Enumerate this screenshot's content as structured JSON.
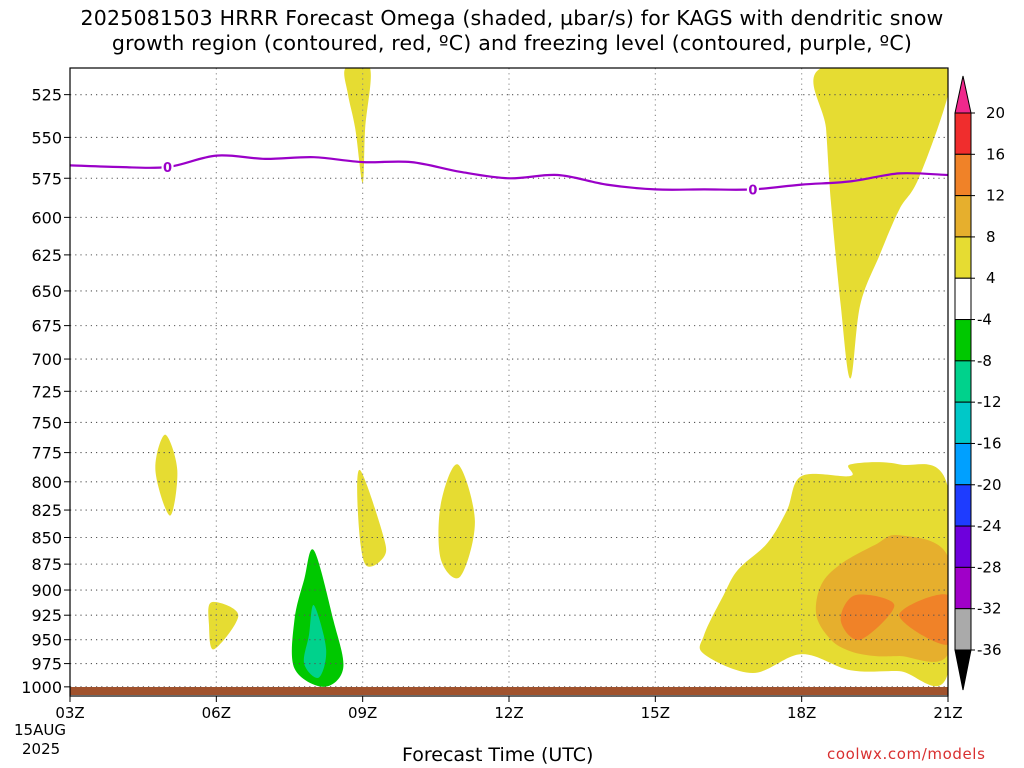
{
  "title_line1": "2025081503 HRRR Forecast Omega (shaded, µbar/s) for KAGS with dendritic snow",
  "title_line2": "growth region (contoured, red, ºC) and freezing level (contoured, purple, ºC)",
  "xaxis_title": "Forecast Time (UTC)",
  "credit": "coolwx.com/models",
  "date_label": {
    "day": "15AUG",
    "year": "2025"
  },
  "colors": {
    "freezing_level": "#9a00c8",
    "terrain": "#a0522d",
    "omega_4_8": "#e6dc32",
    "omega_8_12": "#e6af2d",
    "omega_12_16": "#f08228",
    "omega_neg4_neg8": "#00c800",
    "omega_neg8_neg12": "#00d28c"
  },
  "chart_data": {
    "type": "heatmap",
    "x_categories": [
      "03Z",
      "06Z",
      "09Z",
      "12Z",
      "15Z",
      "18Z",
      "21Z"
    ],
    "x_hours": [
      3,
      6,
      9,
      12,
      15,
      18,
      21
    ],
    "xlim": [
      3,
      21
    ],
    "ylabel_levels": [
      525,
      550,
      575,
      600,
      625,
      650,
      675,
      700,
      725,
      750,
      775,
      800,
      825,
      850,
      875,
      900,
      925,
      950,
      975,
      1000
    ],
    "ylim": [
      510,
      1010
    ],
    "y_scale": "log",
    "grid": true,
    "colorbar": {
      "labels": [
        "20",
        "16",
        "12",
        "8",
        "4",
        "-4",
        "-8",
        "-12",
        "-16",
        "-20",
        "-24",
        "-28",
        "-32",
        "-36"
      ],
      "colors": [
        "#f0288c",
        "#f02d2d",
        "#f08228",
        "#e6af2d",
        "#e6dc32",
        "#ffffff",
        "#00c800",
        "#00d28c",
        "#00c8c8",
        "#00a0ff",
        "#1e3cff",
        "#6e00dc",
        "#a000c8",
        "#aaaaaa"
      ]
    },
    "freezing_level": {
      "label": "0",
      "points": [
        [
          3,
          567
        ],
        [
          4,
          568
        ],
        [
          5,
          568
        ],
        [
          6,
          561
        ],
        [
          7,
          563
        ],
        [
          8,
          562
        ],
        [
          9,
          565
        ],
        [
          10,
          565
        ],
        [
          11,
          571
        ],
        [
          12,
          575
        ],
        [
          13,
          573
        ],
        [
          14,
          579
        ],
        [
          15,
          582
        ],
        [
          16,
          582
        ],
        [
          17,
          582
        ],
        [
          18,
          579
        ],
        [
          19,
          577
        ],
        [
          20,
          572
        ],
        [
          21,
          573
        ]
      ],
      "label_hours": [
        5,
        17
      ]
    },
    "omega_regions": [
      {
        "name": "omega-4-8-top-spike",
        "band": "omega_4_8",
        "points": [
          [
            8.65,
            510
          ],
          [
            9.15,
            510
          ],
          [
            9.05,
            545
          ],
          [
            9.0,
            578
          ],
          [
            8.85,
            545
          ],
          [
            8.7,
            525
          ]
        ]
      },
      {
        "name": "omega-4-8-upper-right",
        "band": "omega_4_8",
        "points": [
          [
            18.4,
            510
          ],
          [
            20.9,
            510
          ],
          [
            21,
            525
          ],
          [
            20.4,
            575
          ],
          [
            20.0,
            595
          ],
          [
            19.6,
            625
          ],
          [
            19.2,
            660
          ],
          [
            19.0,
            715
          ],
          [
            18.8,
            660
          ],
          [
            18.6,
            590
          ],
          [
            18.5,
            545
          ]
        ]
      },
      {
        "name": "omega-4-8-blob-05z",
        "band": "omega_4_8",
        "points": [
          [
            4.95,
            760
          ],
          [
            5.2,
            790
          ],
          [
            5.05,
            830
          ],
          [
            4.75,
            790
          ]
        ]
      },
      {
        "name": "omega-4-8-blob-0545z",
        "band": "omega_4_8",
        "points": [
          [
            5.9,
            912
          ],
          [
            6.45,
            925
          ],
          [
            5.95,
            960
          ],
          [
            5.85,
            935
          ]
        ]
      },
      {
        "name": "omega-4-8-blob-09z",
        "band": "omega_4_8",
        "points": [
          [
            8.95,
            790
          ],
          [
            9.4,
            845
          ],
          [
            9.45,
            867
          ],
          [
            9.05,
            875
          ],
          [
            8.9,
            825
          ]
        ]
      },
      {
        "name": "omega-4-8-blob-11z",
        "band": "omega_4_8",
        "points": [
          [
            10.95,
            785
          ],
          [
            11.3,
            835
          ],
          [
            11.0,
            887
          ],
          [
            10.6,
            870
          ],
          [
            10.6,
            820
          ]
        ]
      },
      {
        "name": "omega-4-8-lower-right",
        "band": "omega_4_8",
        "points": [
          [
            18.0,
            795
          ],
          [
            19.0,
            795
          ],
          [
            19.0,
            785
          ],
          [
            20.0,
            785
          ],
          [
            21,
            805
          ],
          [
            21,
            985
          ],
          [
            20.0,
            983
          ],
          [
            19.0,
            982
          ],
          [
            18.0,
            965
          ],
          [
            17.0,
            985
          ],
          [
            16.0,
            965
          ],
          [
            16.0,
            945
          ],
          [
            16.4,
            905
          ],
          [
            16.7,
            880
          ],
          [
            17.3,
            855
          ],
          [
            17.7,
            825
          ]
        ]
      },
      {
        "name": "omega-8-12-lower-right",
        "band": "omega_8_12",
        "points": [
          [
            18.4,
            895
          ],
          [
            18.8,
            875
          ],
          [
            19.5,
            857
          ],
          [
            20.0,
            848
          ],
          [
            21,
            868
          ],
          [
            21,
            965
          ],
          [
            20.0,
            967
          ],
          [
            19.5,
            967
          ],
          [
            19.0,
            962
          ],
          [
            18.6,
            950
          ],
          [
            18.3,
            925
          ]
        ]
      },
      {
        "name": "omega-12-16-1915z",
        "band": "omega_12_16",
        "points": [
          [
            19.1,
            905
          ],
          [
            19.9,
            915
          ],
          [
            19.2,
            950
          ],
          [
            18.8,
            930
          ]
        ]
      },
      {
        "name": "omega-12-16-21z",
        "band": "omega_12_16",
        "points": [
          [
            21,
            905
          ],
          [
            21,
            955
          ],
          [
            20.0,
            925
          ]
        ]
      },
      {
        "name": "omega-neg4-neg8",
        "band": "omega_neg4_neg8",
        "points": [
          [
            8.0,
            862
          ],
          [
            8.4,
            930
          ],
          [
            8.6,
            980
          ],
          [
            8.2,
            1000
          ],
          [
            7.6,
            980
          ],
          [
            7.6,
            930
          ],
          [
            7.8,
            890
          ]
        ]
      },
      {
        "name": "omega-neg8-neg12",
        "band": "omega_neg8_neg12",
        "points": [
          [
            8.0,
            915
          ],
          [
            8.25,
            960
          ],
          [
            8.1,
            990
          ],
          [
            7.8,
            975
          ],
          [
            7.9,
            945
          ]
        ]
      }
    ]
  }
}
